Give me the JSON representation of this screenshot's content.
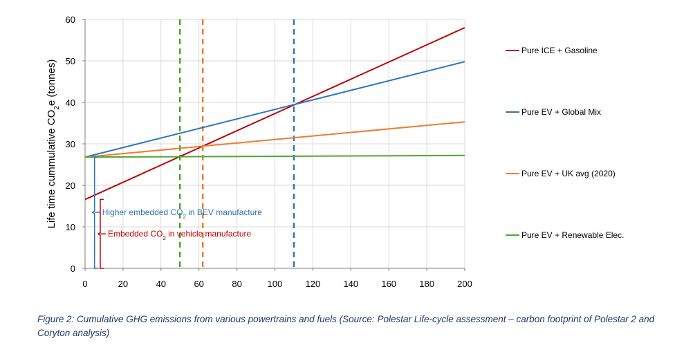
{
  "chart_data": {
    "type": "line",
    "ylabel_parts": {
      "prefix": "Life time cummulative CO",
      "sub": "2",
      "suffix": "e (tonnes)"
    },
    "xlabel": "",
    "xlim": [
      0,
      200
    ],
    "ylim": [
      0,
      60
    ],
    "xticks": [
      0,
      20,
      40,
      60,
      80,
      100,
      120,
      140,
      160,
      180,
      200
    ],
    "yticks": [
      0,
      10,
      20,
      30,
      40,
      50,
      60
    ],
    "grid": true,
    "legend_position": "right",
    "series": [
      {
        "name": "Pure ICE + Gasoline",
        "color": "#c00000",
        "x": [
          0,
          200
        ],
        "y": [
          16.6,
          58
        ]
      },
      {
        "name": "Pure EV + Global Mix",
        "color": "#2e75b6",
        "x": [
          0,
          200
        ],
        "y": [
          26.8,
          49.8
        ]
      },
      {
        "name": "Pure EV + UK avg  (2020)",
        "color": "#ed7d31",
        "x": [
          0,
          200
        ],
        "y": [
          26.8,
          35.3
        ]
      },
      {
        "name": "Pure EV + Renewable Elec.",
        "color": "#4ea72e",
        "x": [
          0,
          200
        ],
        "y": [
          26.8,
          27.2
        ]
      }
    ],
    "vlines": [
      {
        "x": 50,
        "color": "#4ea72e"
      },
      {
        "x": 62,
        "color": "#ed7d31"
      },
      {
        "x": 110,
        "color": "#2e75b6"
      }
    ],
    "annotations": [
      {
        "color": "#2e75b6",
        "prefix": "Higher embedded CO",
        "sub": "2",
        "suffix": " in BEV manufacture",
        "bracket_x": 5,
        "from": 0,
        "to": 26.8,
        "label_y": 13.5
      },
      {
        "color": "#c00000",
        "prefix": "Embedded CO",
        "sub": "2",
        "suffix": " in vehicle manufacture",
        "bracket_x": 8,
        "from": 0,
        "to": 16.6,
        "label_y": 8.3
      }
    ]
  },
  "caption": "Figure 2: Cumulative GHG emissions from various powertrains and fuels (Source: Polestar Life-cycle assessment – carbon footprint of Polestar 2 and Coryton analysis)"
}
